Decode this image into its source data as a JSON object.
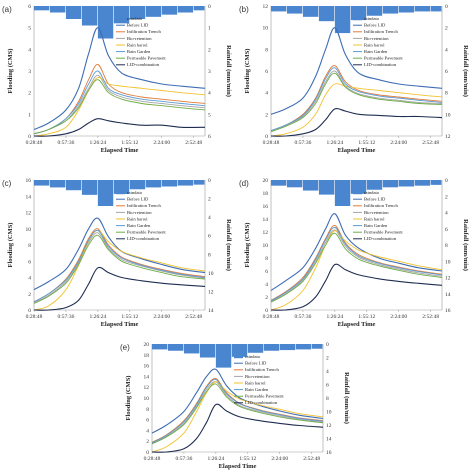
{
  "colors": {
    "rain": "#4a86d0",
    "Before LID": "#3f6db4",
    "Infiltration Trench": "#e07b39",
    "Bio-retention": "#a5a5a5",
    "Rain barrel": "#f2c12e",
    "Rain Garden": "#5a9bd5",
    "Permeable Pavement": "#70ad47",
    "LID-combination": "#1f2d50"
  },
  "chart_data": [
    {
      "type": "line",
      "panel_label": "(a)",
      "xlabel": "Elapsed Time",
      "ylabel": "Flooding (CMS)",
      "y2label": "Rainfall (mm/min)",
      "x_ticks": [
        "0:28:48",
        "0:57:36",
        "1:26:24",
        "1:55:12",
        "2:24:00",
        "2:52:48"
      ],
      "xlim": [
        0.48,
        3.05
      ],
      "ylim": [
        0,
        6
      ],
      "y_ticks": [
        0,
        1,
        2,
        3,
        4,
        5,
        6
      ],
      "y2lim": [
        0,
        6
      ],
      "y2_ticks": [
        0,
        1,
        2,
        3,
        4,
        5,
        6
      ],
      "legend": [
        "raindata",
        "Before LID",
        "Infiltration Trench",
        "Bio-retention",
        "Rain barrel",
        "Rain Garden",
        "Permeable Pavement",
        "LID-combination"
      ],
      "rain": {
        "x": [
          0.48,
          0.72,
          0.96,
          1.2,
          1.44,
          1.68,
          1.92,
          2.16,
          2.4,
          2.64,
          2.88
        ],
        "values": [
          0.2,
          0.3,
          0.6,
          0.9,
          1.5,
          0.8,
          0.6,
          0.5,
          0.4,
          0.3,
          0.2
        ]
      },
      "x": [
        0.48,
        0.7,
        0.96,
        1.15,
        1.3,
        1.44,
        1.6,
        1.8,
        2.1,
        2.4,
        2.7,
        3.05
      ],
      "series": [
        {
          "name": "Before LID",
          "values": [
            0.3,
            0.6,
            1.2,
            2.2,
            3.8,
            5.0,
            3.7,
            2.9,
            2.6,
            2.4,
            2.3,
            2.2
          ]
        },
        {
          "name": "Infiltration Trench",
          "values": [
            0.1,
            0.3,
            0.8,
            1.6,
            2.6,
            3.3,
            2.4,
            2.0,
            1.8,
            1.7,
            1.6,
            1.5
          ]
        },
        {
          "name": "Bio-retention",
          "values": [
            0.1,
            0.3,
            0.7,
            1.4,
            2.2,
            2.8,
            2.1,
            1.8,
            1.6,
            1.5,
            1.4,
            1.3
          ]
        },
        {
          "name": "Rain barrel",
          "values": [
            0.0,
            0.1,
            0.4,
            1.2,
            2.1,
            2.7,
            2.4,
            2.3,
            2.2,
            2.1,
            2.0,
            1.9
          ]
        },
        {
          "name": "Rain Garden",
          "values": [
            0.1,
            0.3,
            0.8,
            1.5,
            2.4,
            3.0,
            2.2,
            1.9,
            1.7,
            1.6,
            1.5,
            1.4
          ]
        },
        {
          "name": "Permeable Pavement",
          "values": [
            0.1,
            0.3,
            0.7,
            1.3,
            2.1,
            2.6,
            2.0,
            1.7,
            1.5,
            1.4,
            1.3,
            1.2
          ]
        },
        {
          "name": "LID-combination",
          "values": [
            0.0,
            0.0,
            0.1,
            0.3,
            0.6,
            0.8,
            0.7,
            0.6,
            0.5,
            0.5,
            0.4,
            0.4
          ]
        }
      ]
    },
    {
      "type": "line",
      "panel_label": "(b)",
      "xlabel": "Elapsed Time",
      "ylabel": "Flooding (CMS)",
      "y2label": "Rainfall (mm/min)",
      "x_ticks": [
        "0:28:48",
        "0:57:36",
        "1:26:24",
        "1:55:12",
        "2:24:00",
        "2:52:48"
      ],
      "xlim": [
        0.48,
        3.05
      ],
      "ylim": [
        0,
        12
      ],
      "y_ticks": [
        0,
        2,
        4,
        6,
        8,
        10,
        12
      ],
      "y2lim": [
        0,
        12
      ],
      "y2_ticks": [
        0,
        2,
        4,
        6,
        8,
        10,
        12
      ],
      "legend": [
        "raindata",
        "Before LID",
        "Infiltration Trench",
        "Bio-retention",
        "Rain barrel",
        "Rain Garden",
        "Permeable Pavement",
        "LID-combination"
      ],
      "rain": {
        "x": [
          0.48,
          0.72,
          0.96,
          1.2,
          1.44,
          1.68,
          1.92,
          2.16,
          2.4,
          2.64,
          2.88
        ],
        "values": [
          0.5,
          0.7,
          1.0,
          1.4,
          2.5,
          1.3,
          0.9,
          0.7,
          0.6,
          0.5,
          0.5
        ]
      },
      "x": [
        0.48,
        0.7,
        0.96,
        1.15,
        1.3,
        1.44,
        1.6,
        1.8,
        2.1,
        2.4,
        2.7,
        3.05
      ],
      "series": [
        {
          "name": "Before LID",
          "values": [
            2.0,
            2.5,
            3.5,
            5.5,
            8.0,
            10.0,
            7.5,
            5.8,
            5.2,
            4.8,
            4.6,
            4.4
          ]
        },
        {
          "name": "Infiltration Trench",
          "values": [
            0.5,
            1.0,
            2.0,
            3.5,
            5.5,
            6.5,
            5.0,
            4.2,
            3.8,
            3.6,
            3.4,
            3.2
          ]
        },
        {
          "name": "Bio-retention",
          "values": [
            0.5,
            1.0,
            1.8,
            3.2,
            5.0,
            6.0,
            4.6,
            3.9,
            3.5,
            3.3,
            3.1,
            3.0
          ]
        },
        {
          "name": "Rain barrel",
          "values": [
            0.0,
            0.2,
            0.8,
            2.0,
            3.8,
            4.8,
            4.6,
            4.4,
            4.2,
            4.0,
            3.8,
            3.6
          ]
        },
        {
          "name": "Rain Garden",
          "values": [
            0.5,
            1.0,
            1.9,
            3.4,
            5.3,
            6.3,
            4.8,
            4.1,
            3.7,
            3.5,
            3.3,
            3.1
          ]
        },
        {
          "name": "Permeable Pavement",
          "values": [
            0.4,
            0.9,
            1.7,
            3.0,
            4.8,
            5.8,
            4.5,
            3.8,
            3.4,
            3.2,
            3.0,
            2.9
          ]
        },
        {
          "name": "LID-combination",
          "values": [
            0.0,
            0.0,
            0.2,
            0.6,
            1.5,
            2.5,
            2.3,
            2.0,
            1.9,
            1.8,
            1.8,
            1.7
          ]
        }
      ]
    },
    {
      "type": "line",
      "panel_label": "(c)",
      "xlabel": "Elapsed Time",
      "ylabel": "Flooding (CMS)",
      "y2label": "Rainfall (mm/min)",
      "x_ticks": [
        "0:28:48",
        "0:57:36",
        "1:26:24",
        "1:55:12",
        "2:24:00",
        "2:52:48"
      ],
      "xlim": [
        0.48,
        3.05
      ],
      "ylim": [
        0,
        16
      ],
      "y_ticks": [
        0,
        2,
        4,
        6,
        8,
        10,
        12,
        14,
        16
      ],
      "y2lim": [
        0,
        14
      ],
      "y2_ticks": [
        0,
        2,
        4,
        6,
        8,
        10,
        12,
        14
      ],
      "legend": [
        "raindata",
        "Before LID",
        "Infiltration Trench",
        "Bio-retention",
        "Rain barrel",
        "Rain Garden",
        "Permeable Pavement",
        "LID-combination"
      ],
      "rain": {
        "x": [
          0.48,
          0.72,
          0.96,
          1.2,
          1.44,
          1.68,
          1.92,
          2.16,
          2.4,
          2.64,
          2.88
        ],
        "values": [
          0.6,
          0.8,
          1.1,
          1.6,
          2.8,
          1.5,
          1.0,
          0.8,
          0.7,
          0.6,
          0.5
        ]
      },
      "x": [
        0.48,
        0.7,
        0.96,
        1.15,
        1.3,
        1.44,
        1.6,
        1.8,
        2.1,
        2.4,
        2.7,
        3.05
      ],
      "series": [
        {
          "name": "Before LID",
          "values": [
            2.5,
            3.5,
            5.0,
            7.5,
            10.0,
            11.3,
            9.0,
            7.2,
            6.3,
            5.6,
            5.0,
            4.6
          ]
        },
        {
          "name": "Infiltration Trench",
          "values": [
            1.0,
            2.0,
            3.8,
            6.2,
            8.8,
            10.0,
            8.0,
            6.5,
            5.6,
            5.0,
            4.5,
            4.1
          ]
        },
        {
          "name": "Bio-retention",
          "values": [
            0.9,
            1.8,
            3.5,
            5.8,
            8.3,
            9.5,
            7.6,
            6.2,
            5.4,
            4.8,
            4.3,
            3.9
          ]
        },
        {
          "name": "Rain barrel",
          "values": [
            0.0,
            0.5,
            2.5,
            5.5,
            8.5,
            9.8,
            8.4,
            7.2,
            6.4,
            5.8,
            5.2,
            4.8
          ]
        },
        {
          "name": "Rain Garden",
          "values": [
            1.0,
            2.0,
            3.7,
            6.0,
            8.6,
            9.8,
            7.8,
            6.4,
            5.5,
            4.9,
            4.4,
            4.0
          ]
        },
        {
          "name": "Permeable Pavement",
          "values": [
            0.8,
            1.7,
            3.3,
            5.6,
            8.0,
            9.2,
            7.4,
            6.0,
            5.2,
            4.6,
            4.1,
            3.8
          ]
        },
        {
          "name": "LID-combination",
          "values": [
            0.0,
            0.0,
            0.3,
            1.2,
            3.2,
            5.2,
            4.6,
            4.0,
            3.6,
            3.3,
            3.1,
            2.9
          ]
        }
      ]
    },
    {
      "type": "line",
      "panel_label": "(d)",
      "xlabel": "Elapsed Time",
      "ylabel": "Flooding (CMS)",
      "y2label": "Rainfall (mm/min)",
      "x_ticks": [
        "0:28:48",
        "0:57:36",
        "1:26:24",
        "1:55:12",
        "2:24:00",
        "2:52:48"
      ],
      "xlim": [
        0.48,
        3.05
      ],
      "ylim": [
        0,
        20
      ],
      "y_ticks": [
        0,
        2,
        4,
        6,
        8,
        10,
        12,
        14,
        16,
        18,
        20
      ],
      "y2lim": [
        0,
        16
      ],
      "y2_ticks": [
        0,
        2,
        4,
        6,
        8,
        10,
        12,
        14,
        16
      ],
      "legend": [
        "raindata",
        "Before LID",
        "Infiltration Trench",
        "Bio-retention",
        "Rain barrel",
        "Rain Garden",
        "Permeable Pavement",
        "LID-combination"
      ],
      "rain": {
        "x": [
          0.48,
          0.72,
          0.96,
          1.2,
          1.44,
          1.68,
          1.92,
          2.16,
          2.4,
          2.64,
          2.88
        ],
        "values": [
          0.7,
          0.9,
          1.3,
          1.8,
          3.2,
          1.7,
          1.2,
          0.9,
          0.8,
          0.7,
          0.6
        ]
      },
      "x": [
        0.48,
        0.7,
        0.96,
        1.15,
        1.3,
        1.44,
        1.6,
        1.8,
        2.1,
        2.4,
        2.7,
        3.05
      ],
      "series": [
        {
          "name": "Before LID",
          "values": [
            3.0,
            4.5,
            6.5,
            9.5,
            12.5,
            14.8,
            11.5,
            9.5,
            8.0,
            7.2,
            6.5,
            6.0
          ]
        },
        {
          "name": "Infiltration Trench",
          "values": [
            1.5,
            2.8,
            5.0,
            8.0,
            11.0,
            13.0,
            10.3,
            8.5,
            7.3,
            6.6,
            6.0,
            5.5
          ]
        },
        {
          "name": "Bio-retention",
          "values": [
            1.3,
            2.5,
            4.6,
            7.5,
            10.4,
            12.3,
            9.8,
            8.1,
            7.0,
            6.3,
            5.7,
            5.2
          ]
        },
        {
          "name": "Rain barrel",
          "values": [
            0.0,
            0.8,
            3.0,
            6.5,
            10.0,
            12.2,
            10.6,
            9.2,
            8.2,
            7.5,
            6.8,
            6.2
          ]
        },
        {
          "name": "Rain Garden",
          "values": [
            1.4,
            2.7,
            4.8,
            7.8,
            10.8,
            12.7,
            10.1,
            8.3,
            7.2,
            6.5,
            5.9,
            5.4
          ]
        },
        {
          "name": "Permeable Pavement",
          "values": [
            1.2,
            2.4,
            4.4,
            7.2,
            10.0,
            11.8,
            9.4,
            7.8,
            6.8,
            6.1,
            5.5,
            5.0
          ]
        },
        {
          "name": "LID-combination",
          "values": [
            0.0,
            0.0,
            0.5,
            2.0,
            4.5,
            7.0,
            6.2,
            5.4,
            4.8,
            4.4,
            4.1,
            3.8
          ]
        }
      ]
    },
    {
      "type": "line",
      "panel_label": "(e)",
      "xlabel": "Elapsed Time",
      "ylabel": "Flooding (CMS)",
      "y2label": "Rainfall (mm/min)",
      "x_ticks": [
        "0:28:48",
        "0:57:36",
        "1:26:24",
        "1:55:12",
        "2:24:00",
        "2:52:48"
      ],
      "xlim": [
        0.48,
        3.05
      ],
      "ylim": [
        0,
        20
      ],
      "y_ticks": [
        0,
        2,
        4,
        6,
        8,
        10,
        12,
        14,
        16,
        18,
        20
      ],
      "y2lim": [
        0,
        16
      ],
      "y2_ticks": [
        0,
        2,
        4,
        6,
        8,
        10,
        12,
        14,
        16
      ],
      "legend": [
        "raindata",
        "Before LID",
        "Infiltration Trench",
        "Bio-retention",
        "Rain barrel",
        "Rain Garden",
        "Permeable Pavement",
        "LID-combination"
      ],
      "rain": {
        "x": [
          0.48,
          0.72,
          0.96,
          1.2,
          1.44,
          1.68,
          1.92,
          2.16,
          2.4,
          2.64,
          2.88
        ],
        "values": [
          0.8,
          1.0,
          1.4,
          2.0,
          3.5,
          1.9,
          1.3,
          1.0,
          0.9,
          0.8,
          0.7
        ]
      },
      "x": [
        0.48,
        0.7,
        0.96,
        1.15,
        1.3,
        1.44,
        1.6,
        1.8,
        2.1,
        2.4,
        2.7,
        3.05
      ],
      "series": [
        {
          "name": "Before LID",
          "values": [
            3.5,
            5.0,
            7.5,
            11.0,
            14.0,
            15.3,
            12.3,
            10.0,
            8.6,
            7.6,
            6.8,
            6.2
          ]
        },
        {
          "name": "Infiltration Trench",
          "values": [
            1.8,
            3.2,
            5.8,
            9.0,
            12.2,
            13.6,
            11.0,
            9.0,
            7.8,
            7.0,
            6.3,
            5.8
          ]
        },
        {
          "name": "Bio-retention",
          "values": [
            1.6,
            2.9,
            5.3,
            8.5,
            11.6,
            13.0,
            10.5,
            8.6,
            7.5,
            6.7,
            6.0,
            5.5
          ]
        },
        {
          "name": "Rain barrel",
          "values": [
            0.0,
            1.0,
            3.5,
            7.5,
            11.0,
            13.0,
            11.3,
            9.8,
            8.7,
            7.9,
            7.1,
            6.5
          ]
        },
        {
          "name": "Rain Garden",
          "values": [
            1.7,
            3.1,
            5.6,
            8.8,
            12.0,
            13.4,
            10.8,
            8.9,
            7.7,
            6.9,
            6.2,
            5.7
          ]
        },
        {
          "name": "Permeable Pavement",
          "values": [
            1.5,
            2.8,
            5.1,
            8.2,
            11.2,
            12.6,
            10.2,
            8.4,
            7.3,
            6.5,
            5.9,
            5.4
          ]
        },
        {
          "name": "LID-combination",
          "values": [
            0.0,
            0.0,
            0.6,
            2.5,
            5.5,
            8.8,
            7.6,
            6.5,
            5.8,
            5.3,
            4.9,
            4.6
          ]
        }
      ]
    }
  ]
}
